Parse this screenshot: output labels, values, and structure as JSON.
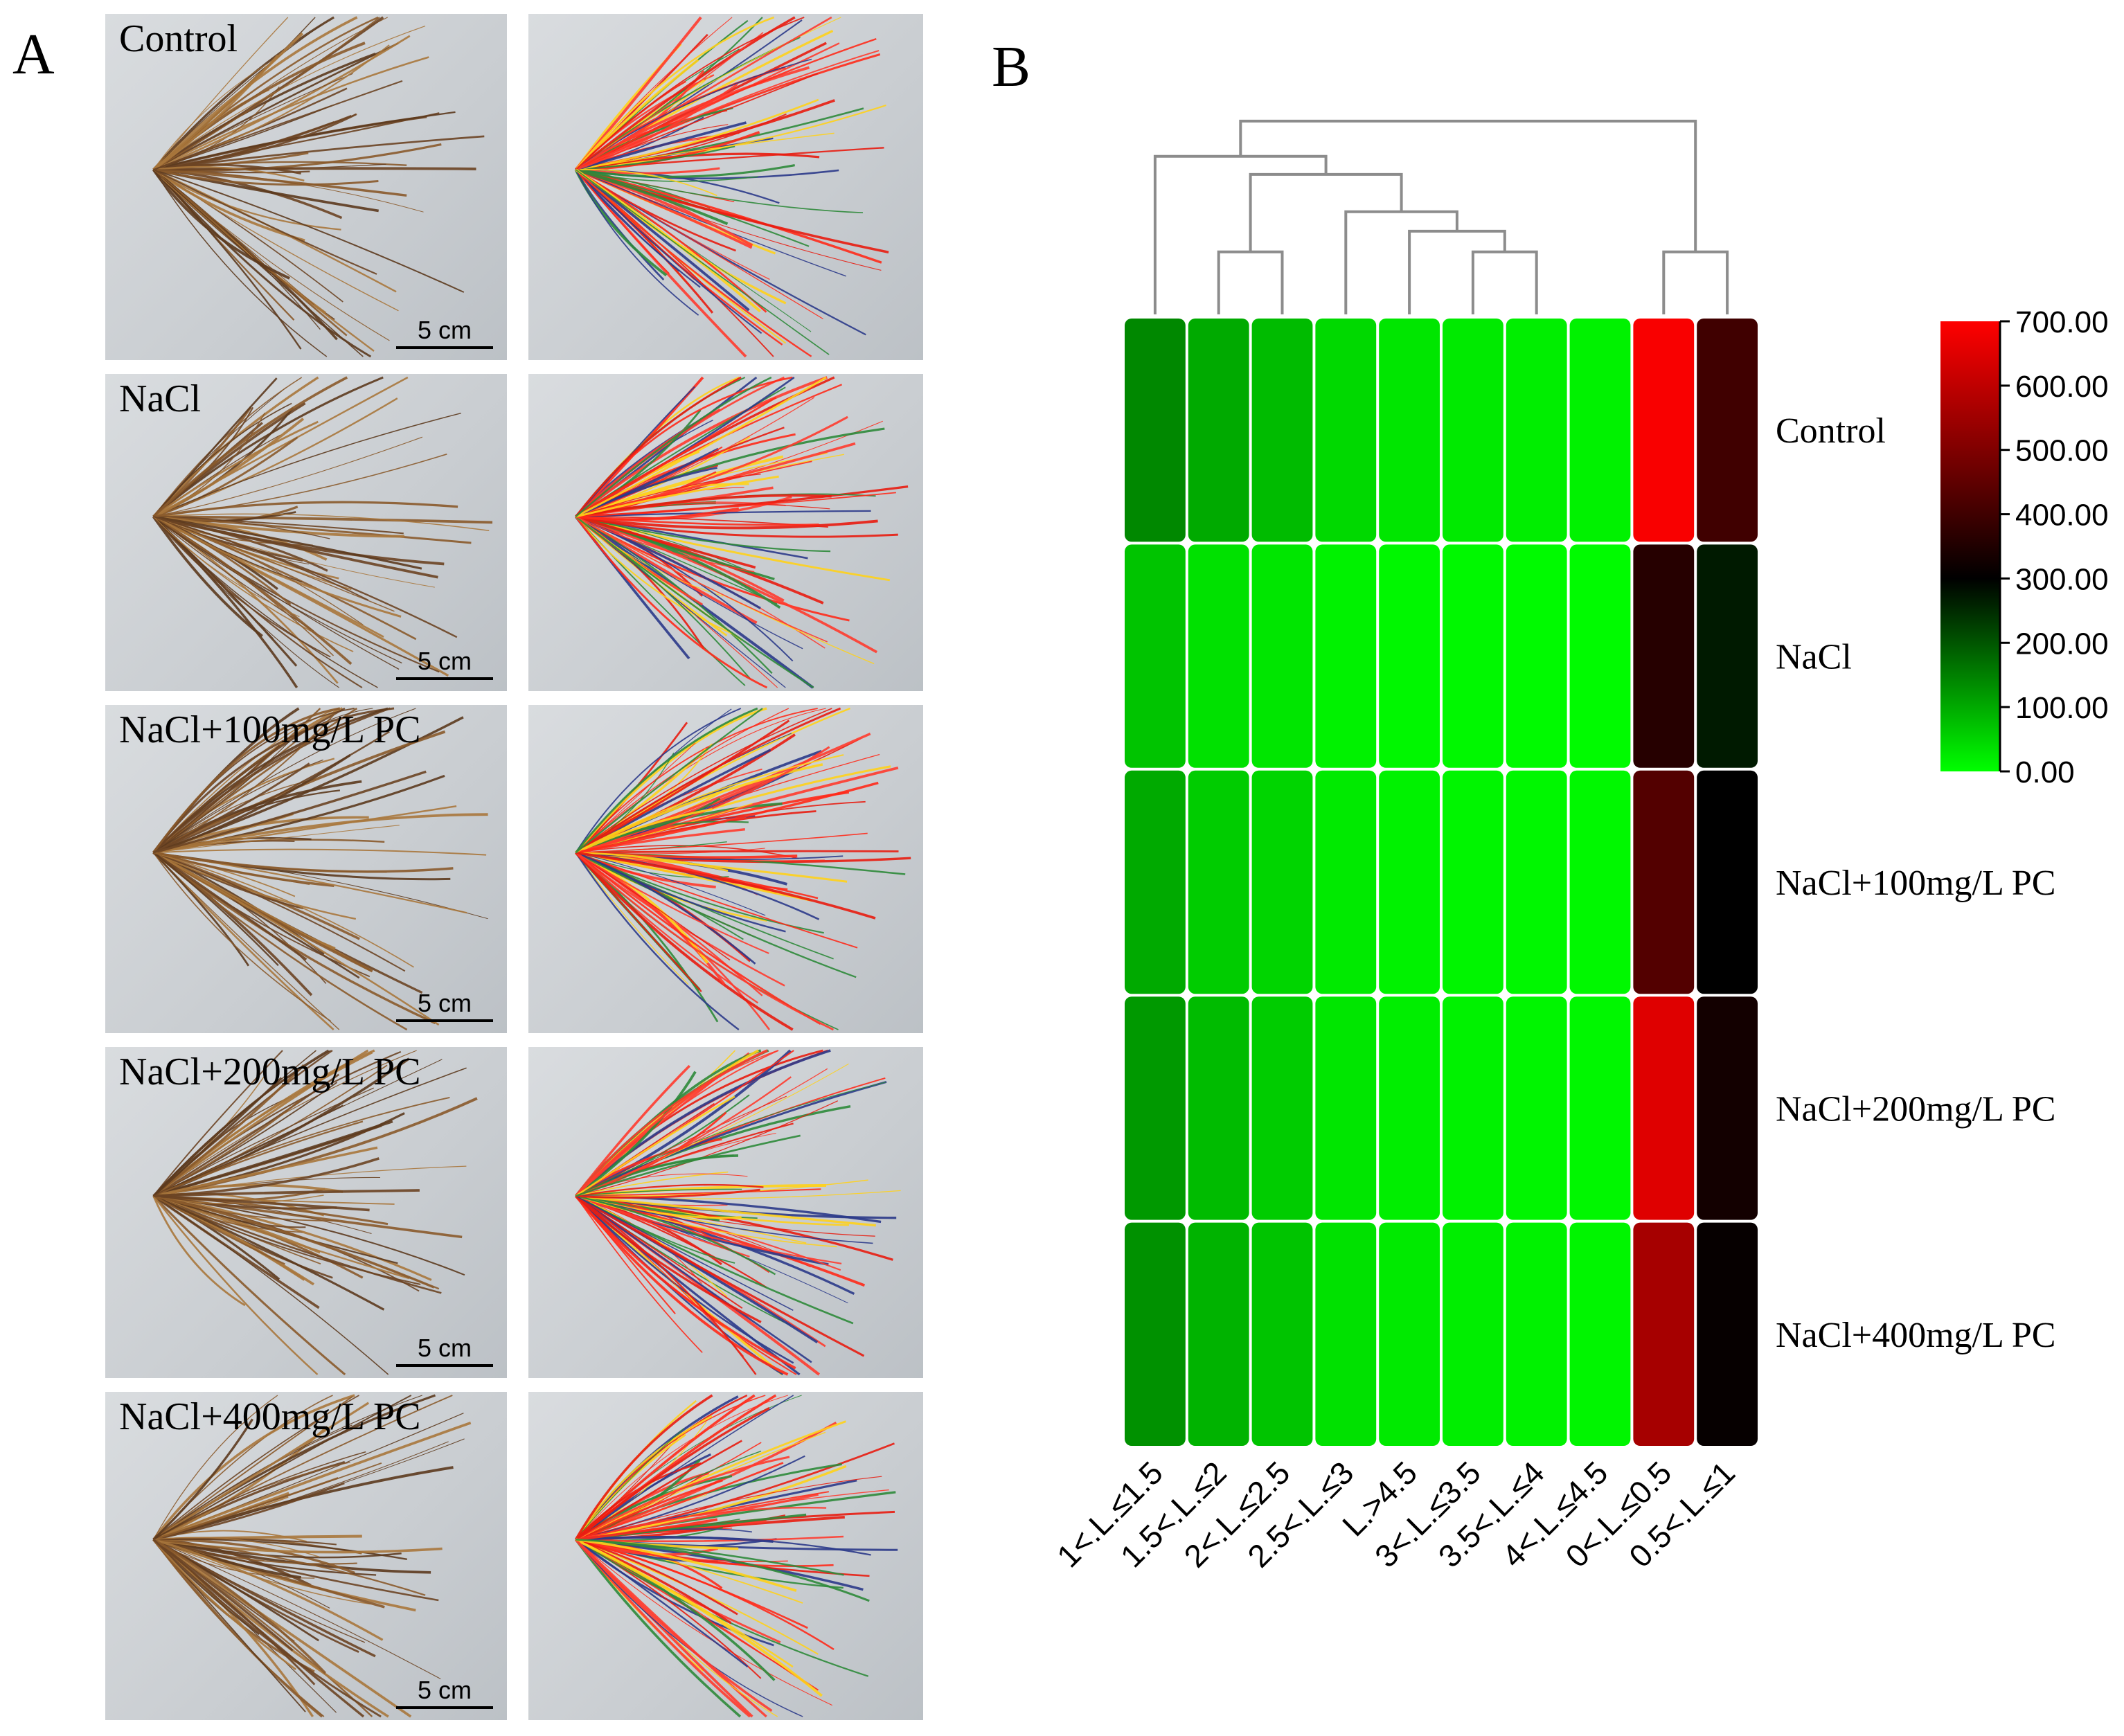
{
  "panel_a": {
    "label": "A",
    "rows": [
      {
        "label": "Control",
        "scale": "5 cm"
      },
      {
        "label": "NaCl",
        "scale": "5 cm"
      },
      {
        "label": "NaCl+100mg/L PC",
        "scale": "5 cm"
      },
      {
        "label": "NaCl+200mg/L PC",
        "scale": "5 cm"
      },
      {
        "label": "NaCl+400mg/L PC",
        "scale": "5 cm"
      }
    ]
  },
  "panel_b": {
    "label": "B"
  },
  "chart_data": {
    "type": "heatmap",
    "title": "",
    "columns": [
      "1<.L.≤1.5",
      "1.5<.L.≤2",
      "2<.L.≤2.5",
      "2.5<.L.≤3",
      "L.>4.5",
      "3<.L.≤3.5",
      "3.5<.L.≤4",
      "4<.L.≤4.5",
      "0<.L.≤0.5",
      "0.5<.L.≤1"
    ],
    "rows": [
      "Control",
      "NaCl",
      "NaCl+100mg/L PC",
      "NaCl+200mg/L PC",
      "NaCl+400mg/L PC"
    ],
    "values": [
      [
        140,
        100,
        80,
        45,
        30,
        25,
        20,
        15,
        690,
        400
      ],
      [
        70,
        35,
        30,
        15,
        10,
        8,
        6,
        5,
        360,
        270
      ],
      [
        100,
        60,
        50,
        25,
        15,
        12,
        10,
        8,
        430,
        300
      ],
      [
        120,
        80,
        60,
        30,
        20,
        15,
        12,
        10,
        650,
        330
      ],
      [
        130,
        90,
        70,
        35,
        25,
        20,
        15,
        12,
        560,
        310
      ]
    ],
    "colorbar": {
      "min": 0,
      "max": 700,
      "ticks": [
        "0.00",
        "100.00",
        "200.00",
        "300.00",
        "400.00",
        "500.00",
        "600.00",
        "700.00"
      ],
      "low_color": "#00ff00",
      "mid_color": "#000000",
      "high_color": "#ff0000",
      "mid_value": 300
    },
    "dendrogram": [
      [
        5,
        6
      ],
      [
        4,
        10
      ],
      [
        3,
        11
      ],
      [
        1,
        2
      ],
      [
        12,
        13
      ],
      [
        0,
        14
      ],
      [
        8,
        9
      ],
      [
        15,
        16
      ]
    ]
  }
}
